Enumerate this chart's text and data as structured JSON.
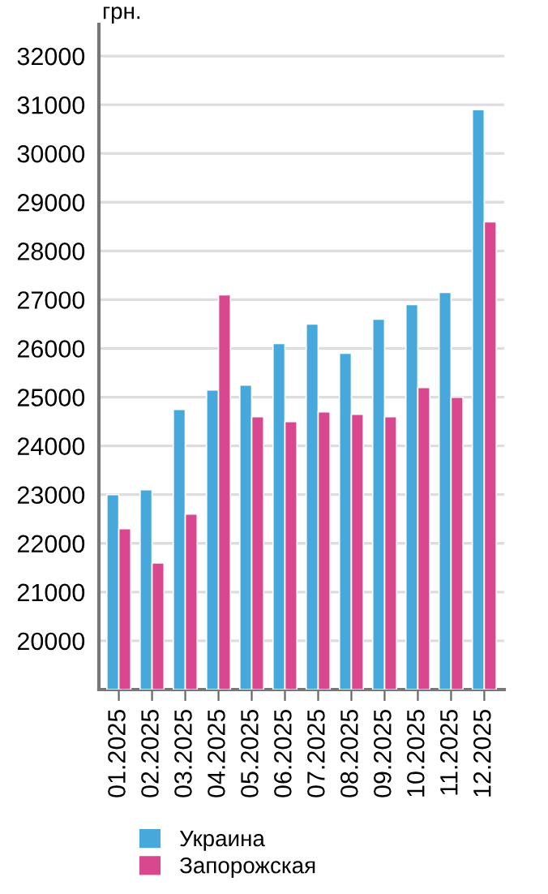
{
  "chart_data": {
    "type": "bar",
    "ylabel": "грн.",
    "categories": [
      "01.2025",
      "02.2025",
      "03.2025",
      "04.2025",
      "05.2025",
      "06.2025",
      "07.2025",
      "08.2025",
      "09.2025",
      "10.2025",
      "11.2025",
      "12.2025"
    ],
    "series": [
      {
        "name": "Украина",
        "color": "#47a9db",
        "values": [
          23000,
          23100,
          24750,
          25150,
          25250,
          26100,
          26500,
          25900,
          26600,
          26900,
          27150,
          30900
        ]
      },
      {
        "name": "Запорожская",
        "color": "#d9478f",
        "values": [
          22300,
          21600,
          22600,
          27100,
          24600,
          24500,
          24700,
          24650,
          24600,
          25200,
          25000,
          28600
        ]
      }
    ],
    "ylim": [
      19000,
      32650
    ],
    "yticks": [
      20000,
      21000,
      22000,
      23000,
      24000,
      25000,
      26000,
      27000,
      28000,
      29000,
      30000,
      31000,
      32000
    ],
    "grid": "y",
    "legend": "bottom"
  }
}
